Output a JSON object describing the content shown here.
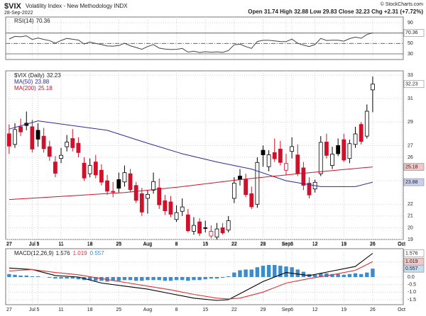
{
  "header": {
    "symbol": "$VIX",
    "name": "Volatility Index - New Methodology INDX",
    "date": "28-Sep-2022",
    "source": "© StockCharts.com",
    "quote": "Open 31.74 High 32.88 Low 29.83 Close 32.23 Chg +2.31 (+7.72%)"
  },
  "chart_data": [
    {
      "type": "line",
      "series": [
        {
          "name": "RSI(14)",
          "color": "#444444",
          "values": [
            58.6,
            63.5,
            62.8,
            64.7,
            57.7,
            60.6,
            57.8,
            55.5,
            50.5,
            55.8,
            59.7,
            58.1,
            56.6,
            49.0,
            52.8,
            50.0,
            47.8,
            45.1,
            44.8,
            46.0,
            50.5,
            45.5,
            42.3,
            38.8,
            44.1,
            47.9,
            41.1,
            39.3,
            38.3,
            38.8,
            40.5,
            33.4,
            35.0,
            32.6,
            34.1,
            33.2,
            33.9,
            32.7,
            36.4,
            47.5,
            48.6,
            44.1,
            40.5,
            53.7,
            56.0,
            56.0,
            54.8,
            53.7,
            53.4,
            58.4,
            50.5,
            46.9,
            44.0,
            47.8,
            59.7,
            55.8,
            56.2,
            56.3,
            54.4,
            59.3,
            62.2,
            60.0,
            67.2,
            70.36
          ]
        }
      ],
      "ylim": [
        19.1,
        100.9
      ],
      "yticks": [
        30,
        50,
        70,
        90
      ],
      "levels": [
        30,
        50,
        70
      ],
      "grid": true
    },
    {
      "type": "candlestick",
      "series": [
        {
          "name": "$VIX (Daily)",
          "up_color": "#000000",
          "down_color": "#d0112b",
          "open": [
            28.0,
            27.1,
            28.6,
            28.9,
            28.6,
            28.3,
            27.8,
            26.9,
            25.6,
            25.9,
            26.9,
            27.6,
            27.2,
            25.5,
            24.6,
            25.6,
            24.9,
            24.0,
            23.1,
            24.1,
            23.9,
            24.6,
            23.6,
            22.9,
            22.5,
            23.2,
            23.4,
            22.3,
            22.2,
            20.7,
            21.4,
            21.1,
            19.7,
            20.5,
            20.0,
            19.3,
            19.2,
            20.0,
            19.8,
            22.5,
            24.4,
            24.1,
            22.9,
            22.0,
            26.6,
            25.2,
            26.4,
            26.7,
            24.9,
            26.5,
            26.2,
            25.1,
            23.8,
            23.3,
            24.6,
            27.3,
            25.3,
            27.0,
            27.5,
            25.9,
            27.1,
            28.8,
            27.8,
            31.74
          ],
          "high": [
            28.8,
            28.9,
            29.3,
            29.9,
            29.2,
            28.9,
            28.5,
            27.4,
            26.1,
            26.8,
            27.9,
            28.4,
            27.7,
            26.0,
            25.9,
            26.2,
            25.4,
            24.5,
            23.9,
            24.7,
            25.3,
            25.0,
            23.9,
            23.4,
            23.2,
            24.7,
            24.2,
            22.8,
            22.7,
            21.9,
            22.5,
            21.6,
            20.9,
            20.8,
            20.6,
            20.2,
            20.4,
            20.4,
            21.0,
            24.3,
            25.0,
            24.6,
            23.5,
            26.0,
            27.0,
            26.6,
            27.6,
            27.4,
            26.3,
            27.7,
            27.1,
            25.6,
            24.3,
            24.1,
            27.8,
            28.0,
            26.9,
            27.6,
            28.0,
            27.5,
            28.6,
            29.0,
            30.5,
            32.88
          ],
          "low": [
            26.3,
            26.8,
            27.8,
            28.3,
            26.4,
            26.9,
            26.4,
            25.7,
            24.3,
            25.5,
            26.5,
            26.5,
            26.0,
            24.0,
            24.3,
            24.2,
            23.6,
            22.8,
            22.6,
            23.0,
            23.5,
            23.0,
            22.1,
            21.0,
            21.2,
            22.9,
            21.6,
            21.1,
            20.9,
            20.5,
            21.0,
            19.6,
            19.4,
            19.3,
            19.6,
            19.1,
            19.0,
            19.4,
            19.6,
            22.1,
            23.6,
            22.6,
            21.6,
            21.7,
            25.2,
            24.8,
            25.6,
            25.3,
            24.5,
            25.9,
            24.4,
            23.2,
            22.5,
            23.0,
            24.4,
            25.9,
            25.0,
            26.1,
            25.6,
            25.5,
            26.8,
            27.1,
            27.6,
            29.83
          ],
          "close": [
            26.95,
            28.36,
            28.16,
            28.71,
            26.7,
            27.54,
            26.73,
            26.08,
            24.64,
            26.17,
            27.29,
            26.82,
            26.4,
            24.23,
            25.3,
            24.5,
            23.88,
            23.11,
            23.03,
            23.36,
            24.69,
            23.24,
            22.33,
            21.33,
            22.84,
            23.93,
            21.95,
            21.44,
            21.15,
            21.29,
            21.77,
            19.74,
            20.2,
            19.53,
            19.95,
            19.69,
            19.9,
            19.56,
            20.6,
            23.8,
            24.11,
            22.82,
            21.78,
            25.56,
            26.21,
            26.21,
            25.87,
            25.56,
            25.47,
            26.91,
            24.64,
            23.61,
            22.79,
            23.87,
            27.27,
            26.16,
            26.27,
            26.3,
            25.76,
            27.16,
            27.99,
            27.35,
            29.92,
            32.23
          ]
        },
        {
          "name": "MA(50)",
          "color": "#2b2b9c",
          "box_color": "#c9cff0",
          "x": [
            0,
            5,
            11,
            17,
            24,
            30,
            36,
            42,
            48,
            54,
            60,
            63
          ],
          "values": [
            28.4,
            29.1,
            28.7,
            28.3,
            27.2,
            26.3,
            25.6,
            25.0,
            24.0,
            23.5,
            23.5,
            23.88
          ]
        },
        {
          "name": "MA(200)",
          "color": "#d0112b",
          "box_color": "#f5c6c6",
          "x": [
            0,
            10,
            20,
            30,
            40,
            50,
            63
          ],
          "values": [
            22.4,
            22.7,
            23.0,
            23.5,
            24.1,
            24.6,
            25.18
          ]
        }
      ],
      "xlim": [
        -0.6,
        68.3
      ],
      "xticks": [
        {
          "value": 0,
          "label": "27"
        },
        {
          "value": 4,
          "label": "Jul"
        },
        {
          "value": 5,
          "label": "5"
        },
        {
          "value": 9,
          "label": "11"
        },
        {
          "value": 14,
          "label": "18"
        },
        {
          "value": 19,
          "label": "25"
        },
        {
          "value": 24,
          "label": "Aug"
        },
        {
          "value": 29,
          "label": "8"
        },
        {
          "value": 34,
          "label": "15"
        },
        {
          "value": 39,
          "label": "22"
        },
        {
          "value": 44,
          "label": "29"
        },
        {
          "value": 48,
          "label": "Sep"
        },
        {
          "value": 49,
          "label": "6"
        },
        {
          "value": 53,
          "label": "12"
        },
        {
          "value": 58,
          "label": "19"
        },
        {
          "value": 63,
          "label": "26"
        },
        {
          "value": 68,
          "label": "Oct"
        }
      ],
      "ylim": [
        19.0,
        33.36
      ],
      "yticks": [
        19,
        20,
        21,
        22,
        24,
        26,
        27,
        29,
        31,
        33
      ],
      "grid": true
    },
    {
      "type": "macd",
      "title": "MACD(12,26,9)",
      "series": [
        {
          "color": "#000000",
          "x": [
            0,
            4,
            8,
            12,
            16,
            20,
            24,
            28,
            32,
            36,
            38,
            40,
            44,
            48,
            52,
            56,
            60,
            63
          ],
          "values": [
            0.6,
            0.5,
            0.1,
            0.0,
            -0.4,
            -0.6,
            -0.8,
            -1.1,
            -1.4,
            -1.55,
            -1.5,
            -1.1,
            -0.3,
            0.3,
            0.1,
            0.4,
            0.7,
            1.576
          ]
        },
        {
          "color": "#e03030",
          "box_color": "#f5c6c6",
          "x": [
            0,
            4,
            8,
            12,
            16,
            20,
            24,
            28,
            32,
            36,
            38,
            40,
            44,
            48,
            52,
            56,
            60,
            63
          ],
          "values": [
            0.4,
            0.5,
            0.3,
            0.15,
            -0.1,
            -0.35,
            -0.6,
            -0.85,
            -1.15,
            -1.4,
            -1.45,
            -1.4,
            -1.0,
            -0.4,
            -0.1,
            0.15,
            0.45,
            1.019
          ]
        },
        {
          "color": "#3d8bc9",
          "box_color": "#c6dcf0",
          "values": [
            0.2,
            0.15,
            0.1,
            0.1,
            0.05,
            0.05,
            0.0,
            -0.05,
            -0.1,
            -0.1,
            -0.1,
            -0.1,
            -0.15,
            -0.2,
            -0.2,
            -0.25,
            -0.25,
            -0.3,
            -0.25,
            -0.25,
            -0.2,
            -0.2,
            -0.25,
            -0.25,
            -0.2,
            -0.2,
            -0.2,
            -0.25,
            -0.25,
            -0.2,
            -0.2,
            -0.25,
            -0.2,
            -0.2,
            -0.15,
            -0.1,
            -0.1,
            -0.05,
            0.05,
            0.3,
            0.45,
            0.5,
            0.5,
            0.65,
            0.75,
            0.8,
            0.8,
            0.75,
            0.7,
            0.65,
            0.5,
            0.35,
            0.2,
            0.15,
            0.25,
            0.25,
            0.2,
            0.2,
            0.15,
            0.2,
            0.25,
            0.2,
            0.3,
            0.557
          ]
        }
      ],
      "ylim": [
        -1.83,
        1.88
      ],
      "yticks": [
        -1.5,
        {
          "value": -1,
          "label": "-1.0"
        },
        -0.5,
        {
          "value": 0,
          "label": "0.0"
        },
        {
          "value": 1,
          "label": "1.0"
        }
      ],
      "grid": true
    }
  ]
}
